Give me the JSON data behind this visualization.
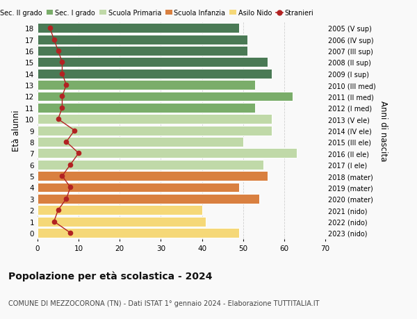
{
  "ages": [
    18,
    17,
    16,
    15,
    14,
    13,
    12,
    11,
    10,
    9,
    8,
    7,
    6,
    5,
    4,
    3,
    2,
    1,
    0
  ],
  "right_labels": [
    "2005 (V sup)",
    "2006 (IV sup)",
    "2007 (III sup)",
    "2008 (II sup)",
    "2009 (I sup)",
    "2010 (III med)",
    "2011 (II med)",
    "2012 (I med)",
    "2013 (V ele)",
    "2014 (IV ele)",
    "2015 (III ele)",
    "2016 (II ele)",
    "2017 (I ele)",
    "2018 (mater)",
    "2019 (mater)",
    "2020 (mater)",
    "2021 (nido)",
    "2022 (nido)",
    "2023 (nido)"
  ],
  "bar_values": [
    49,
    51,
    51,
    56,
    57,
    53,
    62,
    53,
    57,
    57,
    50,
    63,
    55,
    56,
    49,
    54,
    40,
    41,
    49
  ],
  "bar_colors": [
    "#4a7a55",
    "#4a7a55",
    "#4a7a55",
    "#4a7a55",
    "#4a7a55",
    "#7aad6a",
    "#7aad6a",
    "#7aad6a",
    "#c0d9a8",
    "#c0d9a8",
    "#c0d9a8",
    "#c0d9a8",
    "#c0d9a8",
    "#d98040",
    "#d98040",
    "#d98040",
    "#f5d878",
    "#f5d878",
    "#f5d878"
  ],
  "stranieri_values": [
    3,
    4,
    5,
    6,
    6,
    7,
    6,
    6,
    5,
    9,
    7,
    10,
    8,
    6,
    8,
    7,
    5,
    4,
    8
  ],
  "stranieri_color": "#b22222",
  "legend_labels": [
    "Sec. II grado",
    "Sec. I grado",
    "Scuola Primaria",
    "Scuola Infanzia",
    "Asilo Nido",
    "Stranieri"
  ],
  "legend_colors": [
    "#4a7a55",
    "#7aad6a",
    "#c0d9a8",
    "#d98040",
    "#f5d878",
    "#b22222"
  ],
  "ylabel_left": "Età alunni",
  "ylabel_right": "Anni di nascita",
  "title": "Popolazione per età scolastica - 2024",
  "subtitle": "COMUNE DI MEZZOCORONA (TN) - Dati ISTAT 1° gennaio 2024 - Elaborazione TUTTITALIA.IT",
  "xlim": [
    0,
    70
  ],
  "xticks": [
    0,
    10,
    20,
    30,
    40,
    50,
    60,
    70
  ],
  "background_color": "#f9f9f9",
  "grid_color": "#d0d0d0"
}
